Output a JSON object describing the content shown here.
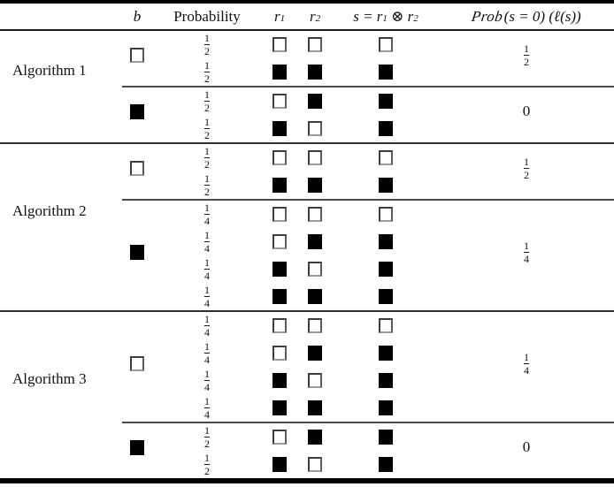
{
  "page": {
    "background": "#ffffff"
  },
  "colors": {
    "text": "#111111",
    "rule": "#000000",
    "block_divider": "#2e2e2e",
    "group_divider": "#4a4a4a",
    "square_fill": "#000000",
    "square_border": "#3d3d3d",
    "square_empty_bg": "#ffffff"
  },
  "table": {
    "headers": {
      "algorithm": "",
      "b": "b",
      "probability": "Probability",
      "r1": {
        "base": "r",
        "sub": "1"
      },
      "r2": {
        "base": "r",
        "sub": "2"
      },
      "s": {
        "lhs": "s",
        "eq": " = ",
        "r1base": "r",
        "r1sub": "1",
        "op": " ⊗ ",
        "r2base": "r",
        "r2sub": "2"
      },
      "prob_s0": {
        "func": "Prob",
        "args": "(s = 0) (ℓ(s))"
      }
    },
    "square_legend": {
      "0": "empty-white-square",
      "1": "filled-black-square"
    },
    "algorithms": [
      {
        "name": "Algorithm 1",
        "groups": [
          {
            "b": 0,
            "prob_s0": "1/2",
            "rows": [
              {
                "prob": "1/2",
                "r1": 0,
                "r2": 0,
                "s": 0
              },
              {
                "prob": "1/2",
                "r1": 1,
                "r2": 1,
                "s": 1
              }
            ]
          },
          {
            "b": 1,
            "prob_s0": "0",
            "rows": [
              {
                "prob": "1/2",
                "r1": 0,
                "r2": 1,
                "s": 1
              },
              {
                "prob": "1/2",
                "r1": 1,
                "r2": 0,
                "s": 1
              }
            ]
          }
        ]
      },
      {
        "name": "Algorithm 2",
        "groups": [
          {
            "b": 0,
            "prob_s0": "1/2",
            "rows": [
              {
                "prob": "1/2",
                "r1": 0,
                "r2": 0,
                "s": 0
              },
              {
                "prob": "1/2",
                "r1": 1,
                "r2": 1,
                "s": 1
              }
            ]
          },
          {
            "b": 1,
            "prob_s0": "1/4",
            "rows": [
              {
                "prob": "1/4",
                "r1": 0,
                "r2": 0,
                "s": 0
              },
              {
                "prob": "1/4",
                "r1": 0,
                "r2": 1,
                "s": 1
              },
              {
                "prob": "1/4",
                "r1": 1,
                "r2": 0,
                "s": 1
              },
              {
                "prob": "1/4",
                "r1": 1,
                "r2": 1,
                "s": 1
              }
            ]
          }
        ]
      },
      {
        "name": "Algorithm 3",
        "groups": [
          {
            "b": 0,
            "prob_s0": "1/4",
            "rows": [
              {
                "prob": "1/4",
                "r1": 0,
                "r2": 0,
                "s": 0
              },
              {
                "prob": "1/4",
                "r1": 0,
                "r2": 1,
                "s": 1
              },
              {
                "prob": "1/4",
                "r1": 1,
                "r2": 0,
                "s": 1
              },
              {
                "prob": "1/4",
                "r1": 1,
                "r2": 1,
                "s": 1
              }
            ]
          },
          {
            "b": 1,
            "prob_s0": "0",
            "rows": [
              {
                "prob": "1/2",
                "r1": 0,
                "r2": 1,
                "s": 1
              },
              {
                "prob": "1/2",
                "r1": 1,
                "r2": 0,
                "s": 1
              }
            ]
          }
        ]
      }
    ]
  }
}
